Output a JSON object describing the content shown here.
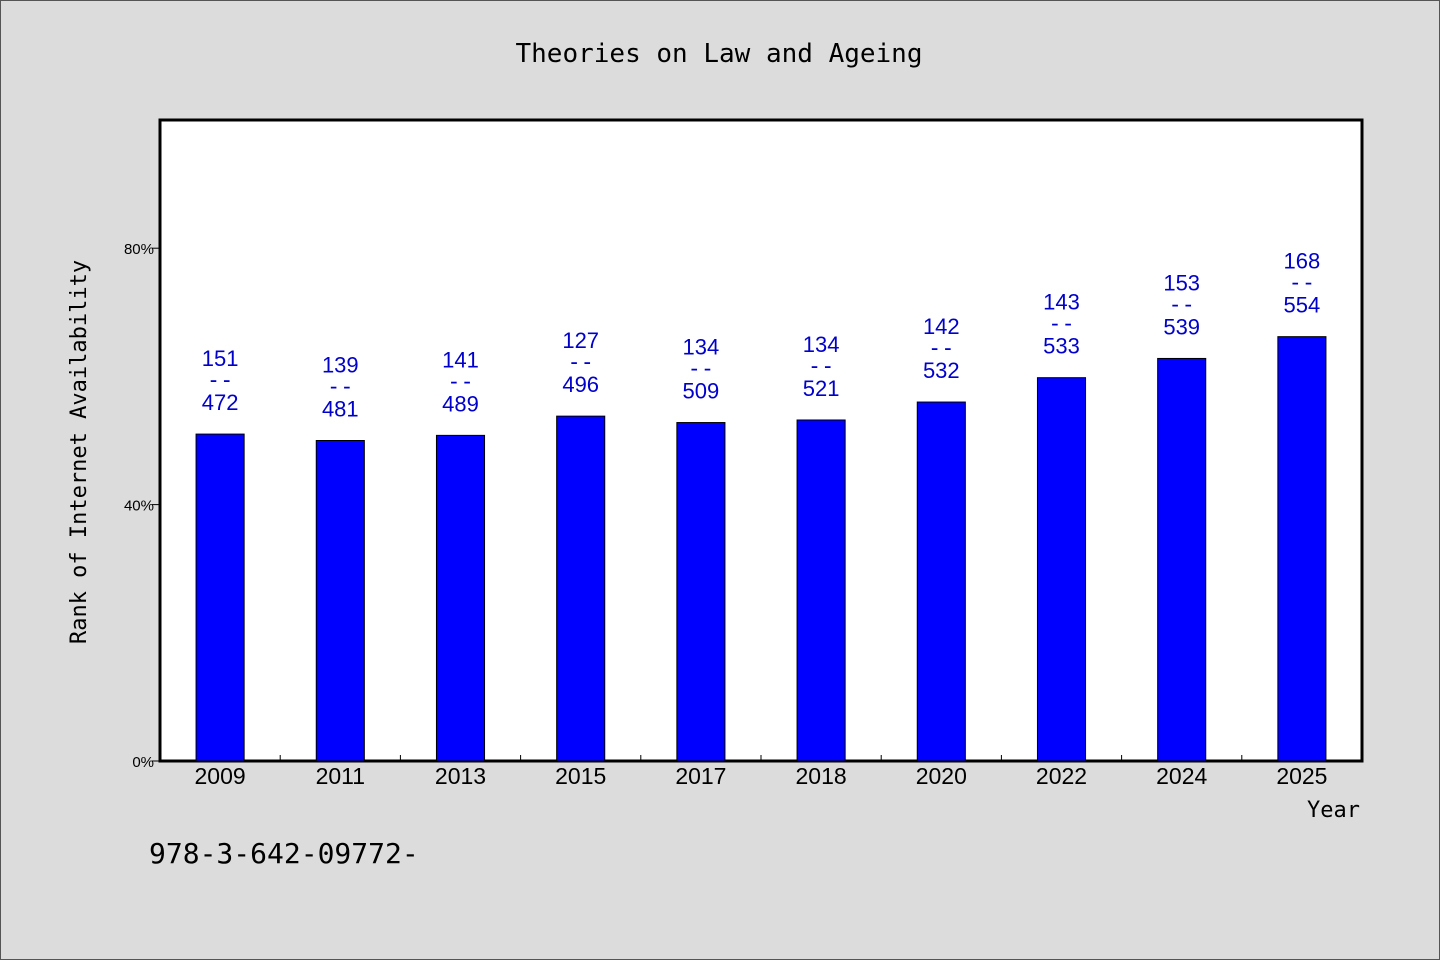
{
  "chart_data": {
    "type": "bar",
    "title": "Theories on Law and Ageing",
    "xlabel": "Year",
    "ylabel": "Rank of Internet Availability",
    "footer": "978-3-642-09772-",
    "categories": [
      "2009",
      "2011",
      "2013",
      "2015",
      "2017",
      "2018",
      "2020",
      "2022",
      "2024",
      "2025"
    ],
    "series": [
      {
        "values": [
          0.51,
          0.5,
          0.508,
          0.538,
          0.528,
          0.532,
          0.56,
          0.598,
          0.628,
          0.662
        ],
        "label_top": [
          "151",
          "139",
          "141",
          "127",
          "134",
          "134",
          "142",
          "143",
          "153",
          "168"
        ],
        "label_bottom": [
          "472",
          "481",
          "489",
          "496",
          "509",
          "521",
          "532",
          "533",
          "539",
          "554"
        ]
      }
    ],
    "label_separator": "--",
    "ylim": [
      0,
      1.0
    ],
    "yticks": [
      0,
      0.4,
      0.8
    ],
    "ytick_labels": [
      "0%",
      "40%",
      "80%"
    ],
    "grid": false,
    "bar_color": "#0000ff",
    "label_color": "#0000cc",
    "plot_background": "#ffffff",
    "page_background": "#dcdcdc"
  }
}
